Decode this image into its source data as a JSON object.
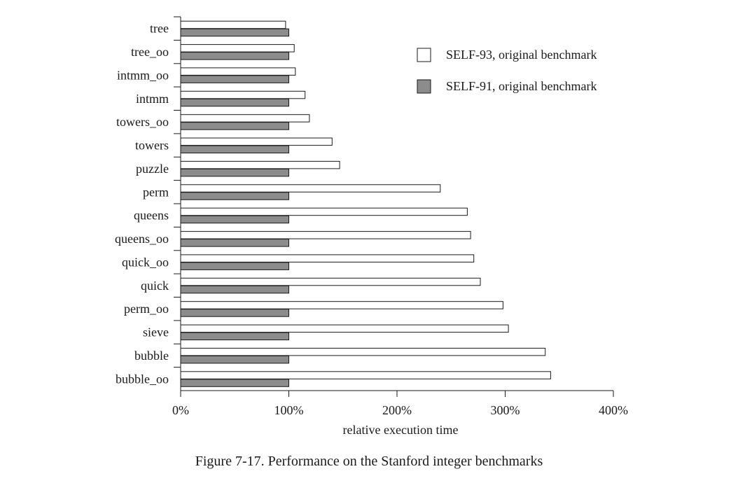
{
  "caption": "Figure 7-17.  Performance on the Stanford integer benchmarks",
  "chart_data": {
    "type": "bar",
    "orientation": "horizontal",
    "categories": [
      "tree",
      "tree_oo",
      "intmm_oo",
      "intmm",
      "towers_oo",
      "towers",
      "puzzle",
      "perm",
      "queens",
      "queens_oo",
      "quick_oo",
      "quick",
      "perm_oo",
      "sieve",
      "bubble",
      "bubble_oo"
    ],
    "series": [
      {
        "name": "SELF-93, original benchmark",
        "color": "#ffffff",
        "values": [
          97,
          105,
          106,
          115,
          119,
          140,
          147,
          240,
          265,
          268,
          271,
          277,
          298,
          303,
          337,
          342
        ]
      },
      {
        "name": "SELF-91, original benchmark",
        "color": "#8c8c8c",
        "values": [
          100,
          100,
          100,
          100,
          100,
          100,
          100,
          100,
          100,
          100,
          100,
          100,
          100,
          100,
          100,
          100
        ]
      }
    ],
    "xlabel": "relative execution time",
    "xlim": [
      0,
      400
    ],
    "xticks": [
      0,
      100,
      200,
      300,
      400
    ],
    "xtick_labels": [
      "0%",
      "100%",
      "200%",
      "300%",
      "400%"
    ],
    "grid": false,
    "legend_position": "top-right"
  }
}
